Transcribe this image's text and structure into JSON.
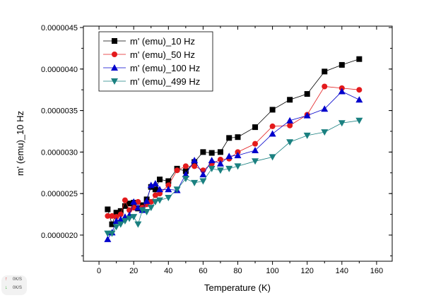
{
  "chart_data": {
    "type": "line",
    "title": "",
    "xlabel": "Temperature (K)",
    "ylabel": "m' (emu)_10 Hz",
    "xlim": [
      -9,
      169
    ],
    "ylim": [
      1.685e-06,
      4.517e-06
    ],
    "xticks": [
      "0",
      "20",
      "40",
      "60",
      "80",
      "100",
      "120",
      "140",
      "160"
    ],
    "xtick_values": [
      0,
      20,
      40,
      60,
      80,
      100,
      120,
      140,
      160
    ],
    "yticks": [
      "0.0000020",
      "0.0000025",
      "0.0000030",
      "0.0000035",
      "0.0000040",
      "0.0000045"
    ],
    "ytick_values": [
      2e-06,
      2.5e-06,
      3e-06,
      3.5e-06,
      4e-06,
      4.5e-06
    ],
    "legend_position": "top-left",
    "x": [
      5,
      7.5,
      10,
      12.5,
      15,
      17.5,
      20,
      22.5,
      25,
      27.5,
      30,
      32.5,
      35,
      40,
      45,
      50,
      55,
      60,
      65,
      70,
      75,
      80,
      90,
      100,
      110,
      120,
      130,
      140,
      150
    ],
    "series": [
      {
        "name": "m' (emu)_10 Hz",
        "color": "#000000",
        "marker": "square",
        "values": [
          2.31e-06,
          2.13e-06,
          2.27e-06,
          2.29e-06,
          2.35e-06,
          2.38e-06,
          2.39e-06,
          2.32e-06,
          2.36e-06,
          2.43e-06,
          2.58e-06,
          2.55e-06,
          2.67e-06,
          2.65e-06,
          2.8e-06,
          2.77e-06,
          2.88e-06,
          3e-06,
          2.99e-06,
          3e-06,
          3.17e-06,
          3.18e-06,
          3.3e-06,
          3.51e-06,
          3.63e-06,
          3.7e-06,
          3.97e-06,
          4.05e-06,
          4.12e-06
        ]
      },
      {
        "name": "m' (emu)_50 Hz",
        "color": "#e31a1c",
        "marker": "circle",
        "values": [
          2.23e-06,
          2.23e-06,
          2.22e-06,
          2.25e-06,
          2.42e-06,
          2.3e-06,
          2.33e-06,
          2.4e-06,
          2.33e-06,
          2.37e-06,
          2.4e-06,
          2.48e-06,
          2.5e-06,
          2.6e-06,
          2.78e-06,
          2.83e-06,
          2.83e-06,
          2.78e-06,
          2.86e-06,
          2.91e-06,
          2.92e-06,
          3e-06,
          3.1e-06,
          3.31e-06,
          3.32e-06,
          3.45e-06,
          3.79e-06,
          3.77e-06,
          3.75e-06
        ]
      },
      {
        "name": "m' (emu)_100 Hz",
        "color": "#0000cc",
        "marker": "triangle-up",
        "values": [
          1.95e-06,
          2.03e-06,
          2.17e-06,
          2.19e-06,
          2.22e-06,
          2.24e-06,
          2.4e-06,
          2.33e-06,
          2.3e-06,
          2.41e-06,
          2.6e-06,
          2.62e-06,
          2.55e-06,
          2.55e-06,
          2.54e-06,
          2.73e-06,
          2.9e-06,
          2.73e-06,
          2.9e-06,
          2.86e-06,
          2.95e-06,
          2.96e-06,
          3.02e-06,
          3.22e-06,
          3.38e-06,
          3.44e-06,
          3.52e-06,
          3.73e-06,
          3.63e-06
        ]
      },
      {
        "name": "m' (emu)_499 Hz",
        "color": "#1a8080",
        "marker": "triangle-down",
        "values": [
          2.02e-06,
          2.02e-06,
          2.1e-06,
          2.13e-06,
          2.17e-06,
          2.2e-06,
          2.22e-06,
          2.13e-06,
          2.3e-06,
          2.28e-06,
          2.33e-06,
          2.4e-06,
          2.42e-06,
          2.45e-06,
          2.55e-06,
          2.68e-06,
          2.63e-06,
          2.65e-06,
          2.8e-06,
          2.78e-06,
          2.8e-06,
          2.83e-06,
          2.89e-06,
          2.94e-06,
          3.12e-06,
          3.2e-06,
          3.24e-06,
          3.35e-06,
          3.38e-06
        ]
      }
    ]
  },
  "speed_widget": {
    "upload": "0K/S",
    "download": "0K/S"
  }
}
